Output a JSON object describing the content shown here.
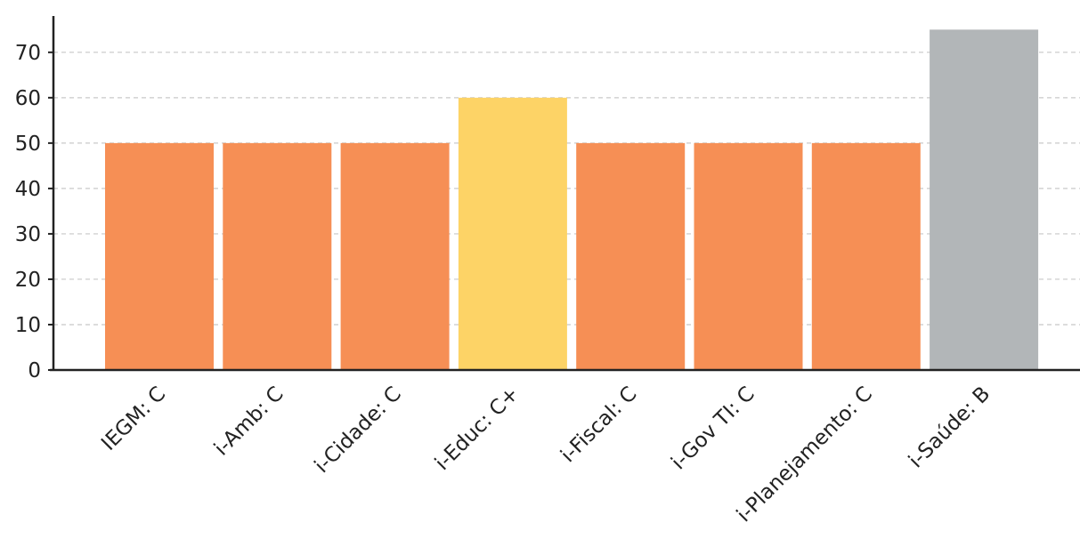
{
  "chart_data": {
    "type": "bar",
    "title": "",
    "xlabel": "",
    "ylabel": "",
    "categories": [
      "IEGM: C",
      "i-Amb: C",
      "i-Cidade: C",
      "i-Educ: C+",
      "i-Fiscal: C",
      "i-Gov TI: C",
      "i-Planejamento: C",
      "i-Saúde: B"
    ],
    "values": [
      50,
      50,
      50,
      60,
      50,
      50,
      50,
      75
    ],
    "colors": [
      "#f68f55",
      "#f68f55",
      "#f68f55",
      "#fdd366",
      "#f68f55",
      "#f68f55",
      "#f68f55",
      "#b2b6b8"
    ],
    "ylim": [
      0,
      78
    ],
    "yticks": [
      0,
      10,
      20,
      30,
      40,
      50,
      60,
      70
    ],
    "grid": "horizontal-dashed",
    "legend": "none"
  }
}
